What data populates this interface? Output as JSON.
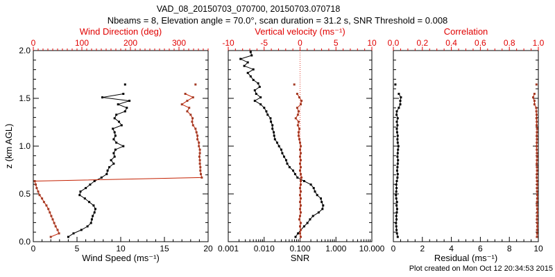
{
  "page": {
    "title": "VAD_08_20150703_070700, 20150703.070718",
    "subtitle": "Nbeams = 8, Elevation angle = 70.0°, scan duration = 31.2 s, SNR Threshold = 0.008",
    "footer": "Plot created on Mon Oct 12 20:34:53 2015"
  },
  "colors": {
    "axis_red": "#e00000",
    "marker_brick": "#a33a24",
    "line_red": "#c42000",
    "black": "#000000",
    "zero_line_red": "#e04030"
  },
  "y_axis": {
    "label": "z (km AGL)",
    "min": 0,
    "max": 2,
    "majors": [
      0,
      0.5,
      1.0,
      1.5,
      2.0
    ],
    "major_labels": [
      "0.0",
      "0.5",
      "1.0",
      "1.5",
      "2.0"
    ],
    "minor_step": 0.1
  },
  "chart_data": [
    {
      "type": "line",
      "name": "wind-panel",
      "top_axis": {
        "label": "Wind Direction (deg)",
        "min": 0,
        "max": 360,
        "scale": "linear",
        "majors": [
          0,
          100,
          200,
          300
        ],
        "major_labels": [
          "0",
          "100",
          "200",
          "300"
        ],
        "minor_step": 10
      },
      "bottom_axis": {
        "label": "Wind Speed (ms⁻¹)",
        "min": 0,
        "max": 20,
        "scale": "linear",
        "majors": [
          0,
          5,
          10,
          15,
          20
        ],
        "major_labels": [
          "0",
          "5",
          "10",
          "15",
          "20"
        ],
        "minor_step": 1
      },
      "z": [
        0.05,
        0.087,
        0.123,
        0.16,
        0.196,
        0.233,
        0.269,
        0.306,
        0.342,
        0.379,
        0.415,
        0.452,
        0.488,
        0.525,
        0.561,
        0.598,
        0.634,
        0.671,
        0.707,
        0.744,
        0.78,
        0.817,
        0.853,
        0.89,
        0.926,
        0.963,
        0.999,
        1.036,
        1.072,
        1.109,
        1.145,
        1.182,
        1.218,
        1.255,
        1.291,
        1.328,
        1.364,
        1.401,
        1.437,
        1.474,
        1.51,
        1.547,
        1.584,
        1.645
      ],
      "series": [
        {
          "name": "wind-speed",
          "axis": "bottom",
          "color": "black",
          "line_color": "black",
          "values": [
            4.0,
            4.6,
            5.5,
            6.2,
            6.6,
            6.7,
            6.8,
            7.0,
            7.1,
            6.9,
            6.4,
            5.9,
            5.3,
            5.4,
            6.0,
            6.5,
            7.0,
            7.8,
            8.4,
            8.5,
            8.7,
            9.2,
            8.9,
            9.3,
            9.2,
            9.4,
            10.3,
            9.5,
            9.2,
            9.4,
            9.3,
            9.1,
            10.1,
            9.8,
            9.3,
            9.5,
            10.5,
            10.7,
            9.7,
            11.0,
            7.9,
            10.3,
            null,
            10.5
          ]
        },
        {
          "name": "wind-direction",
          "axis": "top",
          "color": "brick",
          "line_color": "red",
          "values": [
            36,
            53,
            50,
            46,
            43,
            40,
            37,
            34,
            31,
            27,
            22,
            18,
            13,
            10,
            7,
            5,
            3,
            347,
            345,
            344,
            344,
            343,
            343,
            342,
            343,
            343,
            341,
            341,
            338,
            338,
            336,
            334,
            329,
            327,
            328,
            324,
            317,
            321,
            306,
            317,
            329,
            313,
            null,
            334
          ]
        }
      ]
    },
    {
      "type": "line",
      "name": "snr-panel",
      "zero_line_top_value": 0,
      "top_axis": {
        "label": "Vertical velocity (ms⁻¹)",
        "min": -10,
        "max": 10,
        "scale": "linear",
        "majors": [
          -10,
          -5,
          0,
          5,
          10
        ],
        "major_labels": [
          "-10",
          "-5",
          "0",
          "5",
          "10"
        ],
        "minor_step": 1
      },
      "bottom_axis": {
        "label": "SNR",
        "min": 0.001,
        "max": 10,
        "scale": "log",
        "majors": [
          0.001,
          0.01,
          0.1,
          1,
          10
        ],
        "major_labels": [
          "0.001",
          "0.010",
          "0.100",
          "1.000",
          "10.000"
        ]
      },
      "z": [
        0.05,
        0.087,
        0.123,
        0.16,
        0.196,
        0.233,
        0.269,
        0.306,
        0.342,
        0.379,
        0.415,
        0.452,
        0.488,
        0.525,
        0.561,
        0.598,
        0.634,
        0.671,
        0.707,
        0.744,
        0.78,
        0.817,
        0.853,
        0.89,
        0.926,
        0.963,
        0.999,
        1.036,
        1.072,
        1.109,
        1.145,
        1.182,
        1.218,
        1.255,
        1.291,
        1.328,
        1.364,
        1.401,
        1.437,
        1.474,
        1.51,
        1.547,
        1.584,
        1.645
      ],
      "z_snr": [
        0.05,
        0.087,
        0.123,
        0.16,
        0.196,
        0.233,
        0.269,
        0.306,
        0.342,
        0.379,
        0.415,
        0.452,
        0.488,
        0.525,
        0.561,
        0.598,
        0.634,
        0.671,
        0.707,
        0.744,
        0.78,
        0.817,
        0.853,
        0.89,
        0.926,
        0.963,
        0.999,
        1.036,
        1.072,
        1.109,
        1.145,
        1.182,
        1.218,
        1.255,
        1.291,
        1.328,
        1.364,
        1.401,
        1.437,
        1.474,
        1.51,
        1.547,
        1.584,
        1.62,
        1.657,
        1.693,
        1.73,
        1.766,
        1.803,
        1.839,
        1.876,
        1.912,
        1.949,
        1.985
      ],
      "series": [
        {
          "name": "snr",
          "axis": "bottom",
          "color": "black",
          "line_color": "black",
          "use_z": "z_snr",
          "values": [
            0.075,
            0.088,
            0.105,
            0.13,
            0.16,
            0.19,
            0.23,
            0.33,
            0.42,
            0.44,
            0.4,
            0.38,
            0.3,
            0.26,
            0.24,
            0.2,
            0.13,
            0.085,
            0.073,
            0.064,
            0.051,
            0.044,
            0.041,
            0.036,
            0.032,
            0.03,
            0.026,
            0.023,
            0.02,
            0.019,
            0.0185,
            0.017,
            0.017,
            0.0155,
            0.015,
            0.0125,
            0.0115,
            0.01,
            0.008,
            0.0055,
            0.008,
            0.006,
            0.0055,
            0.0075,
            0.0068,
            0.005,
            0.0042,
            0.0035,
            0.005,
            0.0028,
            0.0035,
            0.0022,
            0.0045,
            0.0042
          ]
        },
        {
          "name": "vertical-velocity",
          "axis": "top",
          "color": "brick",
          "line_color": "red",
          "values": [
            0.1,
            0.0,
            0.1,
            0.0,
            0.1,
            -0.1,
            0.0,
            0.1,
            0.0,
            0.1,
            0.0,
            0.1,
            0.0,
            0.1,
            0.0,
            0.1,
            0.1,
            0.2,
            0.1,
            0.0,
            0.1,
            0.0,
            0.1,
            0.0,
            0.1,
            0.0,
            0.1,
            0.0,
            -0.1,
            -0.2,
            -0.2,
            -0.1,
            -0.3,
            -0.2,
            -0.6,
            -0.3,
            -0.2,
            -0.4,
            0.1,
            0.2,
            -0.1,
            -0.4,
            null,
            -0.8
          ]
        }
      ]
    },
    {
      "type": "line",
      "name": "residual-panel",
      "top_axis": {
        "label": "Correlation",
        "min": 0,
        "max": 1,
        "scale": "linear",
        "majors": [
          0,
          0.2,
          0.4,
          0.6,
          0.8,
          1.0
        ],
        "major_labels": [
          "0.0",
          "0.2",
          "0.4",
          "0.6",
          "0.8",
          "1.0"
        ],
        "minor_step": 0.05
      },
      "bottom_axis": {
        "label": "Residual (ms⁻¹)",
        "min": 0,
        "max": 10,
        "scale": "linear",
        "majors": [
          0,
          2,
          4,
          6,
          8,
          10
        ],
        "major_labels": [
          "0",
          "2",
          "4",
          "6",
          "8",
          "10"
        ],
        "minor_step": 0.5
      },
      "z": [
        0.05,
        0.087,
        0.123,
        0.16,
        0.196,
        0.233,
        0.269,
        0.306,
        0.342,
        0.379,
        0.415,
        0.452,
        0.488,
        0.525,
        0.561,
        0.598,
        0.634,
        0.671,
        0.707,
        0.744,
        0.78,
        0.817,
        0.853,
        0.89,
        0.926,
        0.963,
        0.999,
        1.036,
        1.072,
        1.109,
        1.145,
        1.182,
        1.218,
        1.255,
        1.291,
        1.328,
        1.364,
        1.401,
        1.437,
        1.474,
        1.51,
        1.547,
        1.584,
        1.645
      ],
      "series": [
        {
          "name": "residual",
          "axis": "bottom",
          "color": "black",
          "line_color": "black",
          "values": [
            0.3,
            0.25,
            0.22,
            0.2,
            0.18,
            0.22,
            0.2,
            0.24,
            0.26,
            0.22,
            0.25,
            0.2,
            0.18,
            0.2,
            0.22,
            0.2,
            0.24,
            0.28,
            0.3,
            0.26,
            0.28,
            0.3,
            0.32,
            0.28,
            0.3,
            0.32,
            0.35,
            0.3,
            0.28,
            0.3,
            0.26,
            0.24,
            0.28,
            0.24,
            0.3,
            0.22,
            0.24,
            0.38,
            0.48,
            0.48,
            0.52,
            0.38,
            null,
            0.14
          ]
        },
        {
          "name": "correlation",
          "axis": "top",
          "color": "brick",
          "line_color": "red",
          "values": [
            0.99,
            0.992,
            0.991,
            0.993,
            0.992,
            0.99,
            0.991,
            0.993,
            0.992,
            0.99,
            0.991,
            0.992,
            0.993,
            0.991,
            0.99,
            0.992,
            0.991,
            0.989,
            0.99,
            0.991,
            0.99,
            0.989,
            0.99,
            0.991,
            0.99,
            0.989,
            0.988,
            0.989,
            0.99,
            0.989,
            0.99,
            0.991,
            0.988,
            0.989,
            0.987,
            0.988,
            0.986,
            0.985,
            0.973,
            0.973,
            0.964,
            0.973,
            null,
            0.987
          ]
        }
      ]
    }
  ]
}
